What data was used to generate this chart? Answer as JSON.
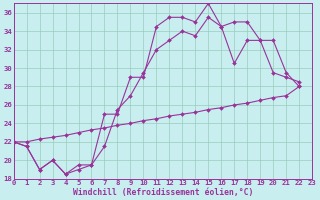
{
  "xlabel": "Windchill (Refroidissement éolien,°C)",
  "background_color": "#c8eef0",
  "grid_color": "#99ccbb",
  "line_color": "#993399",
  "spine_color": "#993399",
  "xmin": 0,
  "xmax": 23,
  "ymin": 18,
  "ymax": 37,
  "yticks": [
    18,
    20,
    22,
    24,
    26,
    28,
    30,
    32,
    34,
    36
  ],
  "xticks": [
    0,
    1,
    2,
    3,
    4,
    5,
    6,
    7,
    8,
    9,
    10,
    11,
    12,
    13,
    14,
    15,
    16,
    17,
    18,
    19,
    20,
    21,
    22,
    23
  ],
  "series1": [
    [
      0,
      22.0
    ],
    [
      1,
      21.5
    ],
    [
      2,
      19.0
    ],
    [
      3,
      20.0
    ],
    [
      4,
      18.5
    ],
    [
      5,
      19.0
    ],
    [
      6,
      19.5
    ],
    [
      7,
      25.0
    ],
    [
      8,
      25.0
    ],
    [
      9,
      29.0
    ],
    [
      10,
      29.0
    ],
    [
      11,
      34.5
    ],
    [
      12,
      35.5
    ],
    [
      13,
      35.5
    ],
    [
      14,
      35.0
    ],
    [
      15,
      37.0
    ],
    [
      16,
      34.5
    ],
    [
      17,
      35.0
    ],
    [
      18,
      35.0
    ],
    [
      19,
      33.0
    ],
    [
      20,
      29.5
    ],
    [
      21,
      29.0
    ],
    [
      22,
      28.5
    ]
  ],
  "series2": [
    [
      0,
      22.0
    ],
    [
      1,
      21.5
    ],
    [
      2,
      19.0
    ],
    [
      3,
      20.0
    ],
    [
      4,
      18.5
    ],
    [
      5,
      19.5
    ],
    [
      6,
      19.5
    ],
    [
      7,
      21.5
    ],
    [
      8,
      25.5
    ],
    [
      9,
      27.0
    ],
    [
      10,
      29.5
    ],
    [
      11,
      32.0
    ],
    [
      12,
      33.0
    ],
    [
      13,
      34.0
    ],
    [
      14,
      33.5
    ],
    [
      15,
      35.5
    ],
    [
      16,
      34.5
    ],
    [
      17,
      30.5
    ],
    [
      18,
      33.0
    ],
    [
      19,
      33.0
    ],
    [
      20,
      33.0
    ],
    [
      21,
      29.5
    ],
    [
      22,
      28.0
    ]
  ],
  "series3": [
    [
      0,
      22.0
    ],
    [
      1,
      22.0
    ],
    [
      2,
      22.3
    ],
    [
      3,
      22.5
    ],
    [
      4,
      22.7
    ],
    [
      5,
      23.0
    ],
    [
      6,
      23.3
    ],
    [
      7,
      23.5
    ],
    [
      8,
      23.8
    ],
    [
      9,
      24.0
    ],
    [
      10,
      24.3
    ],
    [
      11,
      24.5
    ],
    [
      12,
      24.8
    ],
    [
      13,
      25.0
    ],
    [
      14,
      25.2
    ],
    [
      15,
      25.5
    ],
    [
      16,
      25.7
    ],
    [
      17,
      26.0
    ],
    [
      18,
      26.2
    ],
    [
      19,
      26.5
    ],
    [
      20,
      26.8
    ],
    [
      21,
      27.0
    ],
    [
      22,
      28.0
    ]
  ]
}
